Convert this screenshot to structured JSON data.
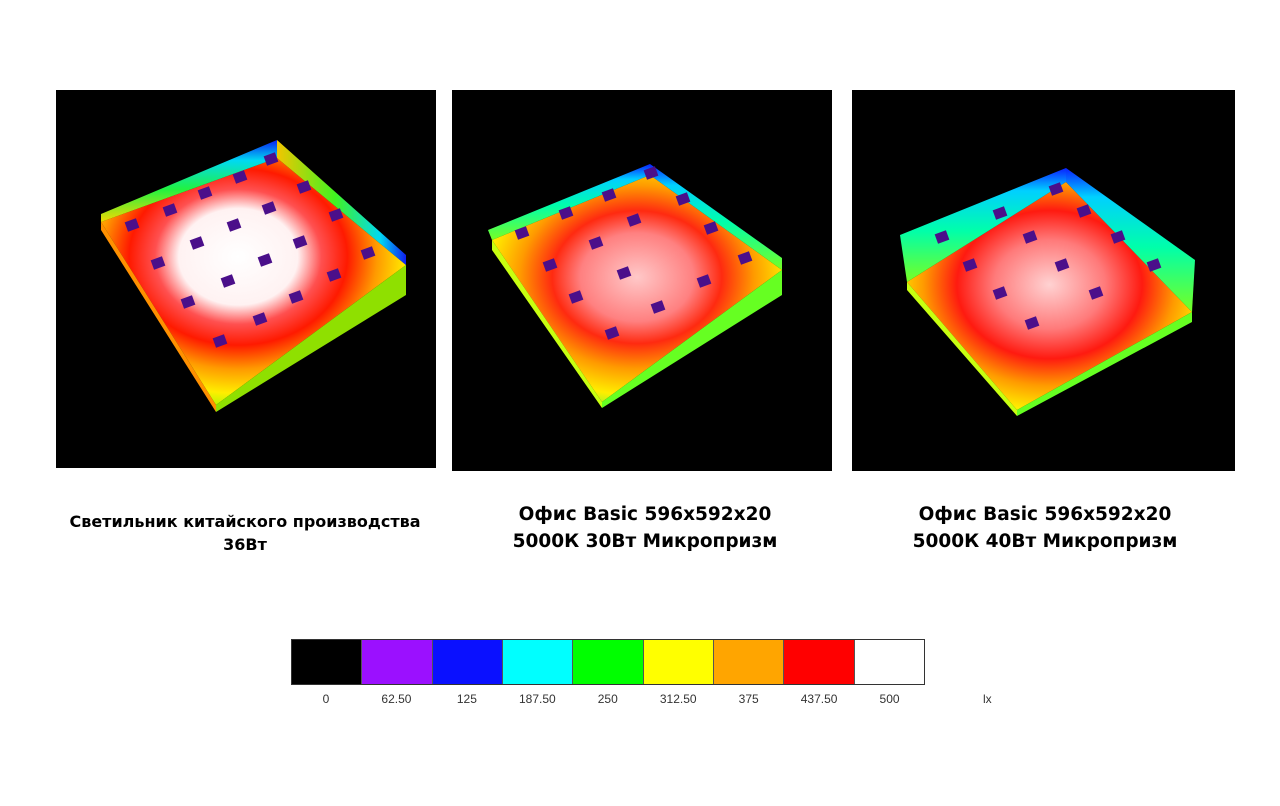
{
  "panels": [
    {
      "caption_lines": [
        "Светильник китайского производства",
        "36Вт"
      ],
      "peak": "white"
    },
    {
      "caption_lines": [
        "Офис Basic 596x592x20",
        "5000К 30Вт Микропризм"
      ],
      "peak": "pink"
    },
    {
      "caption_lines": [
        "Офис Basic 596x592x20",
        "5000К 40Вт Микропризм"
      ],
      "peak": "pink"
    }
  ],
  "legend": {
    "unit": "lx",
    "values": [
      "0",
      "62.50",
      "125",
      "187.50",
      "250",
      "312.50",
      "375",
      "437.50",
      "500"
    ],
    "colors": [
      "#000000",
      "#9b10ff",
      "#0a10ff",
      "#00ffff",
      "#00ff00",
      "#ffff00",
      "#ffa500",
      "#ff0000",
      "#ffffff"
    ]
  },
  "colors": {
    "fixture": "#4b0f8a"
  }
}
